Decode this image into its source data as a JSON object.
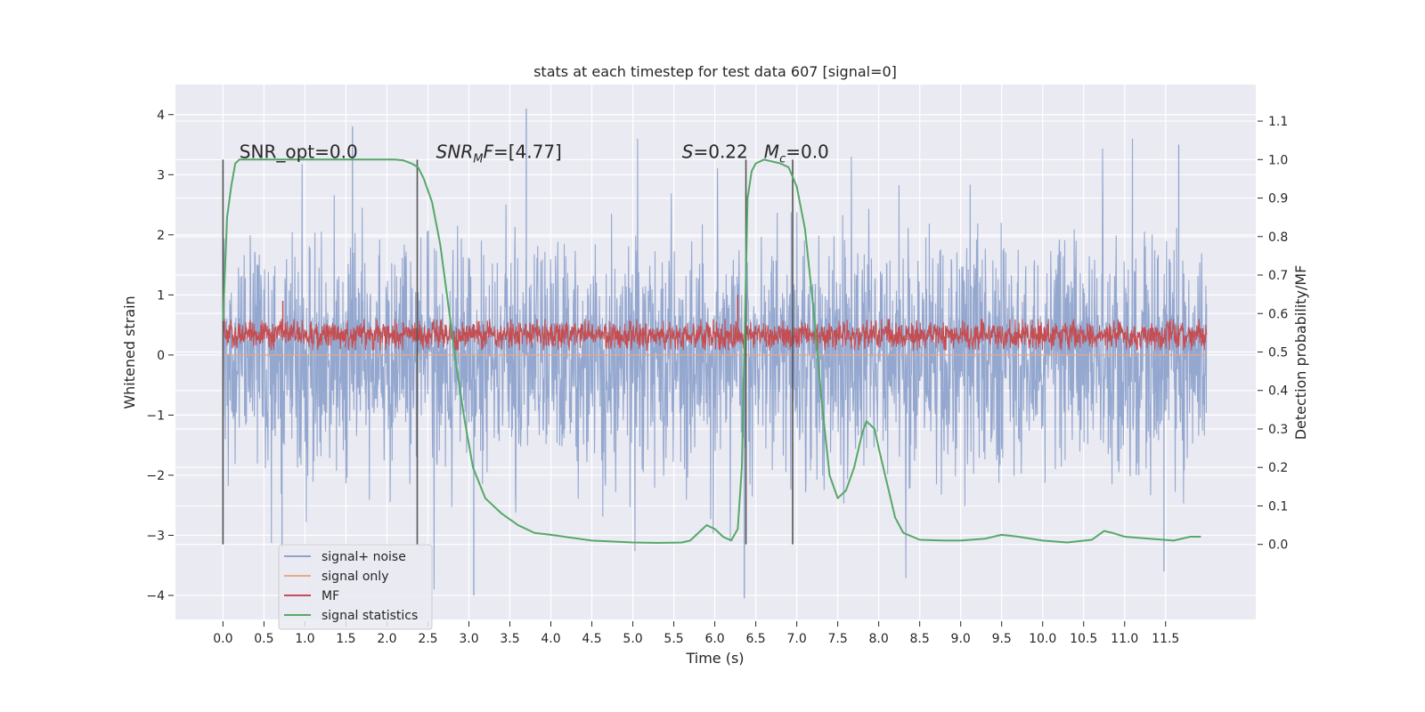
{
  "chart_data": {
    "type": "line",
    "title": "stats at each timestep for test data 607 [signal=0]",
    "xlabel": "Time (s)",
    "ylabel_left": "Whitened strain",
    "ylabel_right": "Detection probability/MF",
    "xlim": [
      -0.58,
      12.6
    ],
    "ylim_left": [
      -4.4,
      4.5
    ],
    "ylim_right": [
      -0.195,
      1.195
    ],
    "x_ticks": [
      0.0,
      0.5,
      1.0,
      1.5,
      2.0,
      2.5,
      3.0,
      3.5,
      4.0,
      4.5,
      5.0,
      5.5,
      6.0,
      6.5,
      7.0,
      7.5,
      8.0,
      8.5,
      9.0,
      9.5,
      10.0,
      10.5,
      11.0,
      11.5
    ],
    "x_tick_labels": [
      "0.0",
      "0.5",
      "1.0",
      "1.5",
      "2.0",
      "2.5",
      "3.0",
      "3.5",
      "4.0",
      "4.5",
      "5.0",
      "5.5",
      "6.0",
      "6.5",
      "7.0",
      "7.5",
      "8.0",
      "8.5",
      "9.0",
      "9.5",
      "10.0",
      "10.5",
      "11.0",
      "11.5"
    ],
    "y_left_ticks": [
      4,
      3,
      2,
      1,
      0,
      -1,
      -2,
      -3,
      -4
    ],
    "y_left_tick_labels": [
      "4",
      "3",
      "2",
      "1",
      "0",
      "−1",
      "−2",
      "−3",
      "−4"
    ],
    "y_right_ticks": [
      1.1,
      1.0,
      0.9,
      0.8,
      0.7,
      0.6,
      0.5,
      0.4,
      0.3,
      0.2,
      0.1,
      0.0
    ],
    "y_right_tick_labels": [
      "1.1",
      "1.0",
      "0.9",
      "0.8",
      "0.7",
      "0.6",
      "0.5",
      "0.4",
      "0.3",
      "0.2",
      "0.1",
      "0.0"
    ],
    "grid": true,
    "legend_placement": "lower-left",
    "series": [
      {
        "name": "signal+ noise",
        "axis": "left",
        "color": "#8fa3cc",
        "style": "dense noise",
        "x_range": [
          0.0,
          12.0
        ],
        "typical_band": [
          -1.3,
          1.3
        ],
        "peak_values": [
          {
            "x": 0.0,
            "y": -3.15
          },
          {
            "x": 0.72,
            "y": -3.2
          },
          {
            "x": 1.58,
            "y": 3.8
          },
          {
            "x": 3.06,
            "y": -4.0
          },
          {
            "x": 3.7,
            "y": 4.1
          },
          {
            "x": 6.36,
            "y": -4.05
          },
          {
            "x": 11.48,
            "y": -3.6
          },
          {
            "x": 11.66,
            "y": 3.5
          }
        ]
      },
      {
        "name": "signal only",
        "axis": "left",
        "color": "#e8a98a",
        "values_description_free": true,
        "x": [
          0.0,
          12.0
        ],
        "y": [
          0.0,
          0.0
        ]
      },
      {
        "name": "MF",
        "axis": "left",
        "color": "#c44e52",
        "style": "dense noise",
        "x_range": [
          0.0,
          12.0
        ],
        "typical_band": [
          0.08,
          0.6
        ],
        "peak_values": [
          {
            "x": 0.73,
            "y": 0.9
          },
          {
            "x": 6.28,
            "y": 1.0
          }
        ]
      },
      {
        "name": "signal statistics",
        "axis": "right",
        "color": "#55a868",
        "x": [
          0.0,
          0.05,
          0.1,
          0.15,
          0.2,
          0.3,
          0.5,
          1.0,
          1.5,
          2.0,
          2.1,
          2.2,
          2.3,
          2.38,
          2.45,
          2.55,
          2.65,
          2.75,
          2.85,
          2.95,
          3.05,
          3.2,
          3.4,
          3.6,
          3.8,
          4.0,
          4.5,
          5.0,
          5.3,
          5.6,
          5.7,
          5.8,
          5.9,
          6.0,
          6.1,
          6.2,
          6.28,
          6.33,
          6.37,
          6.4,
          6.45,
          6.5,
          6.6,
          6.8,
          6.9,
          7.0,
          7.1,
          7.2,
          7.3,
          7.4,
          7.5,
          7.6,
          7.7,
          7.8,
          7.85,
          7.9,
          7.95,
          8.0,
          8.1,
          8.2,
          8.3,
          8.5,
          8.8,
          9.0,
          9.3,
          9.5,
          9.7,
          10.0,
          10.3,
          10.6,
          10.75,
          10.85,
          11.0,
          11.3,
          11.6,
          11.8,
          11.93
        ],
        "y": [
          0.58,
          0.85,
          0.93,
          0.99,
          1.0,
          1.0,
          1.0,
          1.0,
          1.0,
          1.0,
          1.0,
          0.998,
          0.99,
          0.98,
          0.95,
          0.89,
          0.78,
          0.62,
          0.46,
          0.32,
          0.2,
          0.12,
          0.08,
          0.05,
          0.03,
          0.025,
          0.01,
          0.005,
          0.004,
          0.005,
          0.01,
          0.03,
          0.05,
          0.04,
          0.02,
          0.01,
          0.04,
          0.2,
          0.6,
          0.9,
          0.97,
          0.99,
          1.0,
          0.99,
          0.98,
          0.93,
          0.82,
          0.62,
          0.38,
          0.18,
          0.12,
          0.14,
          0.2,
          0.29,
          0.32,
          0.31,
          0.3,
          0.25,
          0.16,
          0.07,
          0.03,
          0.012,
          0.01,
          0.01,
          0.015,
          0.025,
          0.02,
          0.01,
          0.005,
          0.012,
          0.035,
          0.03,
          0.02,
          0.015,
          0.01,
          0.02,
          0.02
        ]
      }
    ],
    "vertical_markers_x": [
      0.0,
      2.37,
      6.38,
      6.95
    ],
    "annotations": [
      {
        "text": "SNR_opt=0.0",
        "x": 0.2,
        "y_right": 1.0
      },
      {
        "text": "SNR_MF=[4.77]",
        "x": 2.6,
        "y_right": 1.0
      },
      {
        "text": "S=0.22",
        "x": 5.6,
        "y_right": 1.0
      },
      {
        "text": "M_c=0.0",
        "x": 6.6,
        "y_right": 1.0
      }
    ]
  }
}
